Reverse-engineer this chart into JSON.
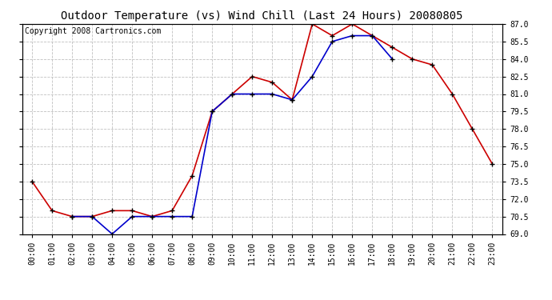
{
  "title": "Outdoor Temperature (vs) Wind Chill (Last 24 Hours) 20080805",
  "copyright": "Copyright 2008 Cartronics.com",
  "hours": [
    "00:00",
    "01:00",
    "02:00",
    "03:00",
    "04:00",
    "05:00",
    "06:00",
    "07:00",
    "08:00",
    "09:00",
    "10:00",
    "11:00",
    "12:00",
    "13:00",
    "14:00",
    "15:00",
    "16:00",
    "17:00",
    "18:00",
    "19:00",
    "20:00",
    "21:00",
    "22:00",
    "23:00"
  ],
  "temp": [
    73.5,
    71.0,
    70.5,
    70.5,
    71.0,
    71.0,
    70.5,
    71.0,
    74.0,
    79.5,
    81.0,
    82.5,
    82.0,
    80.5,
    87.0,
    86.0,
    87.0,
    86.0,
    85.0,
    84.0,
    83.5,
    81.0,
    78.0,
    75.0
  ],
  "windchill": [
    null,
    null,
    70.5,
    70.5,
    69.0,
    70.5,
    70.5,
    70.5,
    70.5,
    79.5,
    81.0,
    81.0,
    81.0,
    80.5,
    82.5,
    85.5,
    86.0,
    86.0,
    84.0,
    null,
    null,
    null,
    null,
    null
  ],
  "temp_color": "#cc0000",
  "windchill_color": "#0000cc",
  "bg_color": "#ffffff",
  "plot_bg_color": "#ffffff",
  "grid_color": "#c0c0c0",
  "ylim": [
    69.0,
    87.0
  ],
  "yticks": [
    69.0,
    70.5,
    72.0,
    73.5,
    75.0,
    76.5,
    78.0,
    79.5,
    81.0,
    82.5,
    84.0,
    85.5,
    87.0
  ],
  "title_fontsize": 10,
  "copyright_fontsize": 7,
  "tick_fontsize": 7,
  "marker": "+",
  "marker_color": "#000000",
  "marker_size": 5,
  "line_width": 1.2
}
